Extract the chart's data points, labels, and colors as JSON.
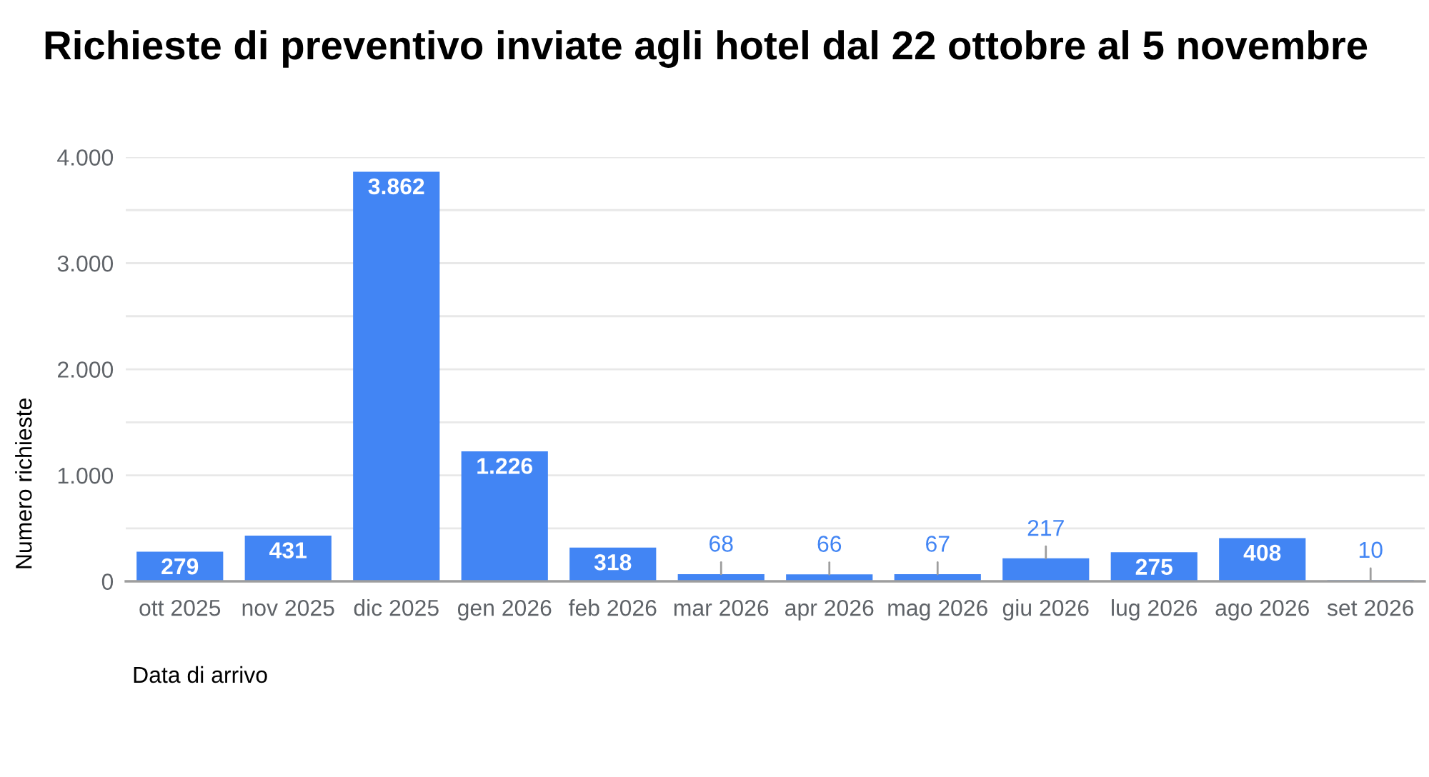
{
  "chart_data": {
    "type": "bar",
    "title": "Richieste di preventivo inviate agli hotel dal 22 ottobre al 5 novembre",
    "xlabel": "Data di arrivo",
    "ylabel": "Numero richieste",
    "categories": [
      "ott 2025",
      "nov 2025",
      "dic 2025",
      "gen 2026",
      "feb 2026",
      "mar 2026",
      "apr 2026",
      "mag 2026",
      "giu 2026",
      "lug 2026",
      "ago 2026",
      "set 2026"
    ],
    "values": [
      279,
      431,
      3862,
      1226,
      318,
      68,
      66,
      67,
      217,
      275,
      408,
      10
    ],
    "value_labels": [
      "279",
      "431",
      "3.862",
      "1.226",
      "318",
      "68",
      "66",
      "67",
      "217",
      "275",
      "408",
      "10"
    ],
    "color": "#4285f4",
    "ylim": [
      0,
      4000
    ],
    "yticks": [
      0,
      {
        "value": 500,
        "label": null
      },
      {
        "value": 1000,
        "label": "1.000"
      },
      {
        "value": 1500,
        "label": null
      },
      {
        "value": 2000,
        "label": "2.000"
      },
      {
        "value": 2500,
        "label": null
      },
      {
        "value": 3000,
        "label": "3.000"
      },
      {
        "value": 3500,
        "label": null
      },
      {
        "value": 4000,
        "label": "4.000"
      }
    ],
    "grid": "y"
  }
}
